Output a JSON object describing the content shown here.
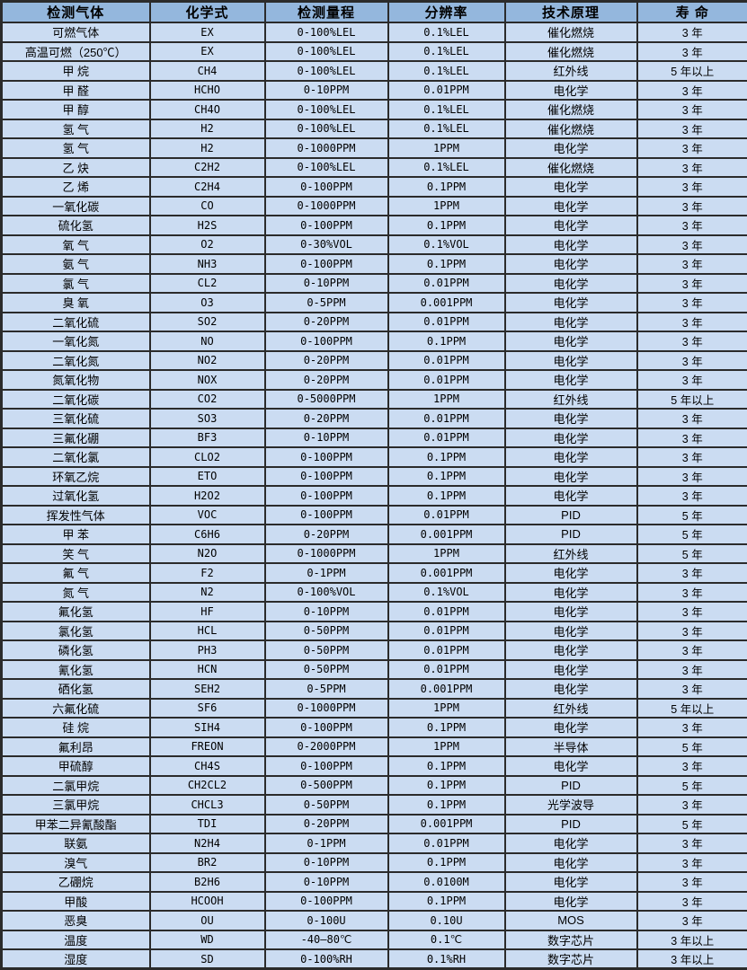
{
  "colors": {
    "header_bg": "#94b7dd",
    "row_bg": "#cbdcf2",
    "border": "#2b2b2b",
    "text": "#000000"
  },
  "table": {
    "headers": [
      "检测气体",
      "化学式",
      "检测量程",
      "分辨率",
      "技术原理",
      "寿 命"
    ],
    "rows": [
      [
        "可燃气体",
        "EX",
        "0-100%LEL",
        "0.1%LEL",
        "催化燃烧",
        "3 年"
      ],
      [
        "高温可燃（250℃）",
        "EX",
        "0-100%LEL",
        "0.1%LEL",
        "催化燃烧",
        "3 年"
      ],
      [
        "甲 烷",
        "CH4",
        "0-100%LEL",
        "0.1%LEL",
        "红外线",
        "5 年以上"
      ],
      [
        "甲 醛",
        "HCHO",
        "0-10PPM",
        "0.01PPM",
        "电化学",
        "3 年"
      ],
      [
        "甲 醇",
        "CH4O",
        "0-100%LEL",
        "0.1%LEL",
        "催化燃烧",
        "3 年"
      ],
      [
        "氢 气",
        "H2",
        "0-100%LEL",
        "0.1%LEL",
        "催化燃烧",
        "3 年"
      ],
      [
        "氢 气",
        "H2",
        "0-1000PPM",
        "1PPM",
        "电化学",
        "3 年"
      ],
      [
        "乙 炔",
        "C2H2",
        "0-100%LEL",
        "0.1%LEL",
        "催化燃烧",
        "3 年"
      ],
      [
        "乙 烯",
        "C2H4",
        "0-100PPM",
        "0.1PPM",
        "电化学",
        "3 年"
      ],
      [
        "一氧化碳",
        "CO",
        "0-1000PPM",
        "1PPM",
        "电化学",
        "3 年"
      ],
      [
        "硫化氢",
        "H2S",
        "0-100PPM",
        "0.1PPM",
        "电化学",
        "3 年"
      ],
      [
        "氧 气",
        "O2",
        "0-30%VOL",
        "0.1%VOL",
        "电化学",
        "3 年"
      ],
      [
        "氨 气",
        "NH3",
        "0-100PPM",
        "0.1PPM",
        "电化学",
        "3 年"
      ],
      [
        "氯 气",
        "CL2",
        "0-10PPM",
        "0.01PPM",
        "电化学",
        "3 年"
      ],
      [
        "臭 氧",
        "O3",
        "0-5PPM",
        "0.001PPM",
        "电化学",
        "3 年"
      ],
      [
        "二氧化硫",
        "SO2",
        "0-20PPM",
        "0.01PPM",
        "电化学",
        "3 年"
      ],
      [
        "一氧化氮",
        "NO",
        "0-100PPM",
        "0.1PPM",
        "电化学",
        "3 年"
      ],
      [
        "二氧化氮",
        "NO2",
        "0-20PPM",
        "0.01PPM",
        "电化学",
        "3 年"
      ],
      [
        "氮氧化物",
        "NOX",
        "0-20PPM",
        "0.01PPM",
        "电化学",
        "3 年"
      ],
      [
        "二氧化碳",
        "CO2",
        "0-5000PPM",
        "1PPM",
        "红外线",
        "5 年以上"
      ],
      [
        "三氧化硫",
        "SO3",
        "0-20PPM",
        "0.01PPM",
        "电化学",
        "3 年"
      ],
      [
        "三氟化硼",
        "BF3",
        "0-10PPM",
        "0.01PPM",
        "电化学",
        "3 年"
      ],
      [
        "二氧化氯",
        "CLO2",
        "0-100PPM",
        "0.1PPM",
        "电化学",
        "3 年"
      ],
      [
        "环氧乙烷",
        "ETO",
        "0-100PPM",
        "0.1PPM",
        "电化学",
        "3 年"
      ],
      [
        "过氧化氢",
        "H2O2",
        "0-100PPM",
        "0.1PPM",
        "电化学",
        "3 年"
      ],
      [
        "挥发性气体",
        "VOC",
        "0-100PPM",
        "0.01PPM",
        "PID",
        "5 年"
      ],
      [
        "甲 苯",
        "C6H6",
        "0-20PPM",
        "0.001PPM",
        "PID",
        "5 年"
      ],
      [
        "笑 气",
        "N2O",
        "0-1000PPM",
        "1PPM",
        "红外线",
        "5 年"
      ],
      [
        "氟 气",
        "F2",
        "0-1PPM",
        "0.001PPM",
        "电化学",
        "3 年"
      ],
      [
        "氮 气",
        "N2",
        "0-100%VOL",
        "0.1%VOL",
        "电化学",
        "3 年"
      ],
      [
        "氟化氢",
        "HF",
        "0-10PPM",
        "0.01PPM",
        "电化学",
        "3 年"
      ],
      [
        "氯化氢",
        "HCL",
        "0-50PPM",
        "0.01PPM",
        "电化学",
        "3 年"
      ],
      [
        "磷化氢",
        "PH3",
        "0-50PPM",
        "0.01PPM",
        "电化学",
        "3 年"
      ],
      [
        "氰化氢",
        "HCN",
        "0-50PPM",
        "0.01PPM",
        "电化学",
        "3 年"
      ],
      [
        "硒化氢",
        "SEH2",
        "0-5PPM",
        "0.001PPM",
        "电化学",
        "3 年"
      ],
      [
        "六氟化硫",
        "SF6",
        "0-1000PPM",
        "1PPM",
        "红外线",
        "5 年以上"
      ],
      [
        "硅 烷",
        "SIH4",
        "0-100PPM",
        "0.1PPM",
        "电化学",
        "3 年"
      ],
      [
        "氟利昂",
        "FREON",
        "0-2000PPM",
        "1PPM",
        "半导体",
        "5 年"
      ],
      [
        "甲硫醇",
        "CH4S",
        "0-100PPM",
        "0.1PPM",
        "电化学",
        "3 年"
      ],
      [
        "二氯甲烷",
        "CH2CL2",
        "0-500PPM",
        "0.1PPM",
        "PID",
        "5 年"
      ],
      [
        "三氯甲烷",
        "CHCL3",
        "0-50PPM",
        "0.1PPM",
        "光学波导",
        "3 年"
      ],
      [
        "甲苯二异氰酸酯",
        "TDI",
        "0-20PPM",
        "0.001PPM",
        "PID",
        "5 年"
      ],
      [
        "联氨",
        "N2H4",
        "0-1PPM",
        "0.01PPM",
        "电化学",
        "3 年"
      ],
      [
        "溴气",
        "BR2",
        "0-10PPM",
        "0.1PPM",
        "电化学",
        "3 年"
      ],
      [
        "乙硼烷",
        "B2H6",
        "0-10PPM",
        "0.0100M",
        "电化学",
        "3 年"
      ],
      [
        "甲酸",
        "HCOOH",
        "0-100PPM",
        "0.1PPM",
        "电化学",
        "3 年"
      ],
      [
        "恶臭",
        "OU",
        "0-100U",
        "0.10U",
        "MOS",
        "3 年"
      ],
      [
        "温度",
        "WD",
        "-40—80℃",
        "0.1℃",
        "数字芯片",
        "3 年以上"
      ],
      [
        "湿度",
        "SD",
        "0-100%RH",
        "0.1%RH",
        "数字芯片",
        "3 年以上"
      ]
    ]
  }
}
